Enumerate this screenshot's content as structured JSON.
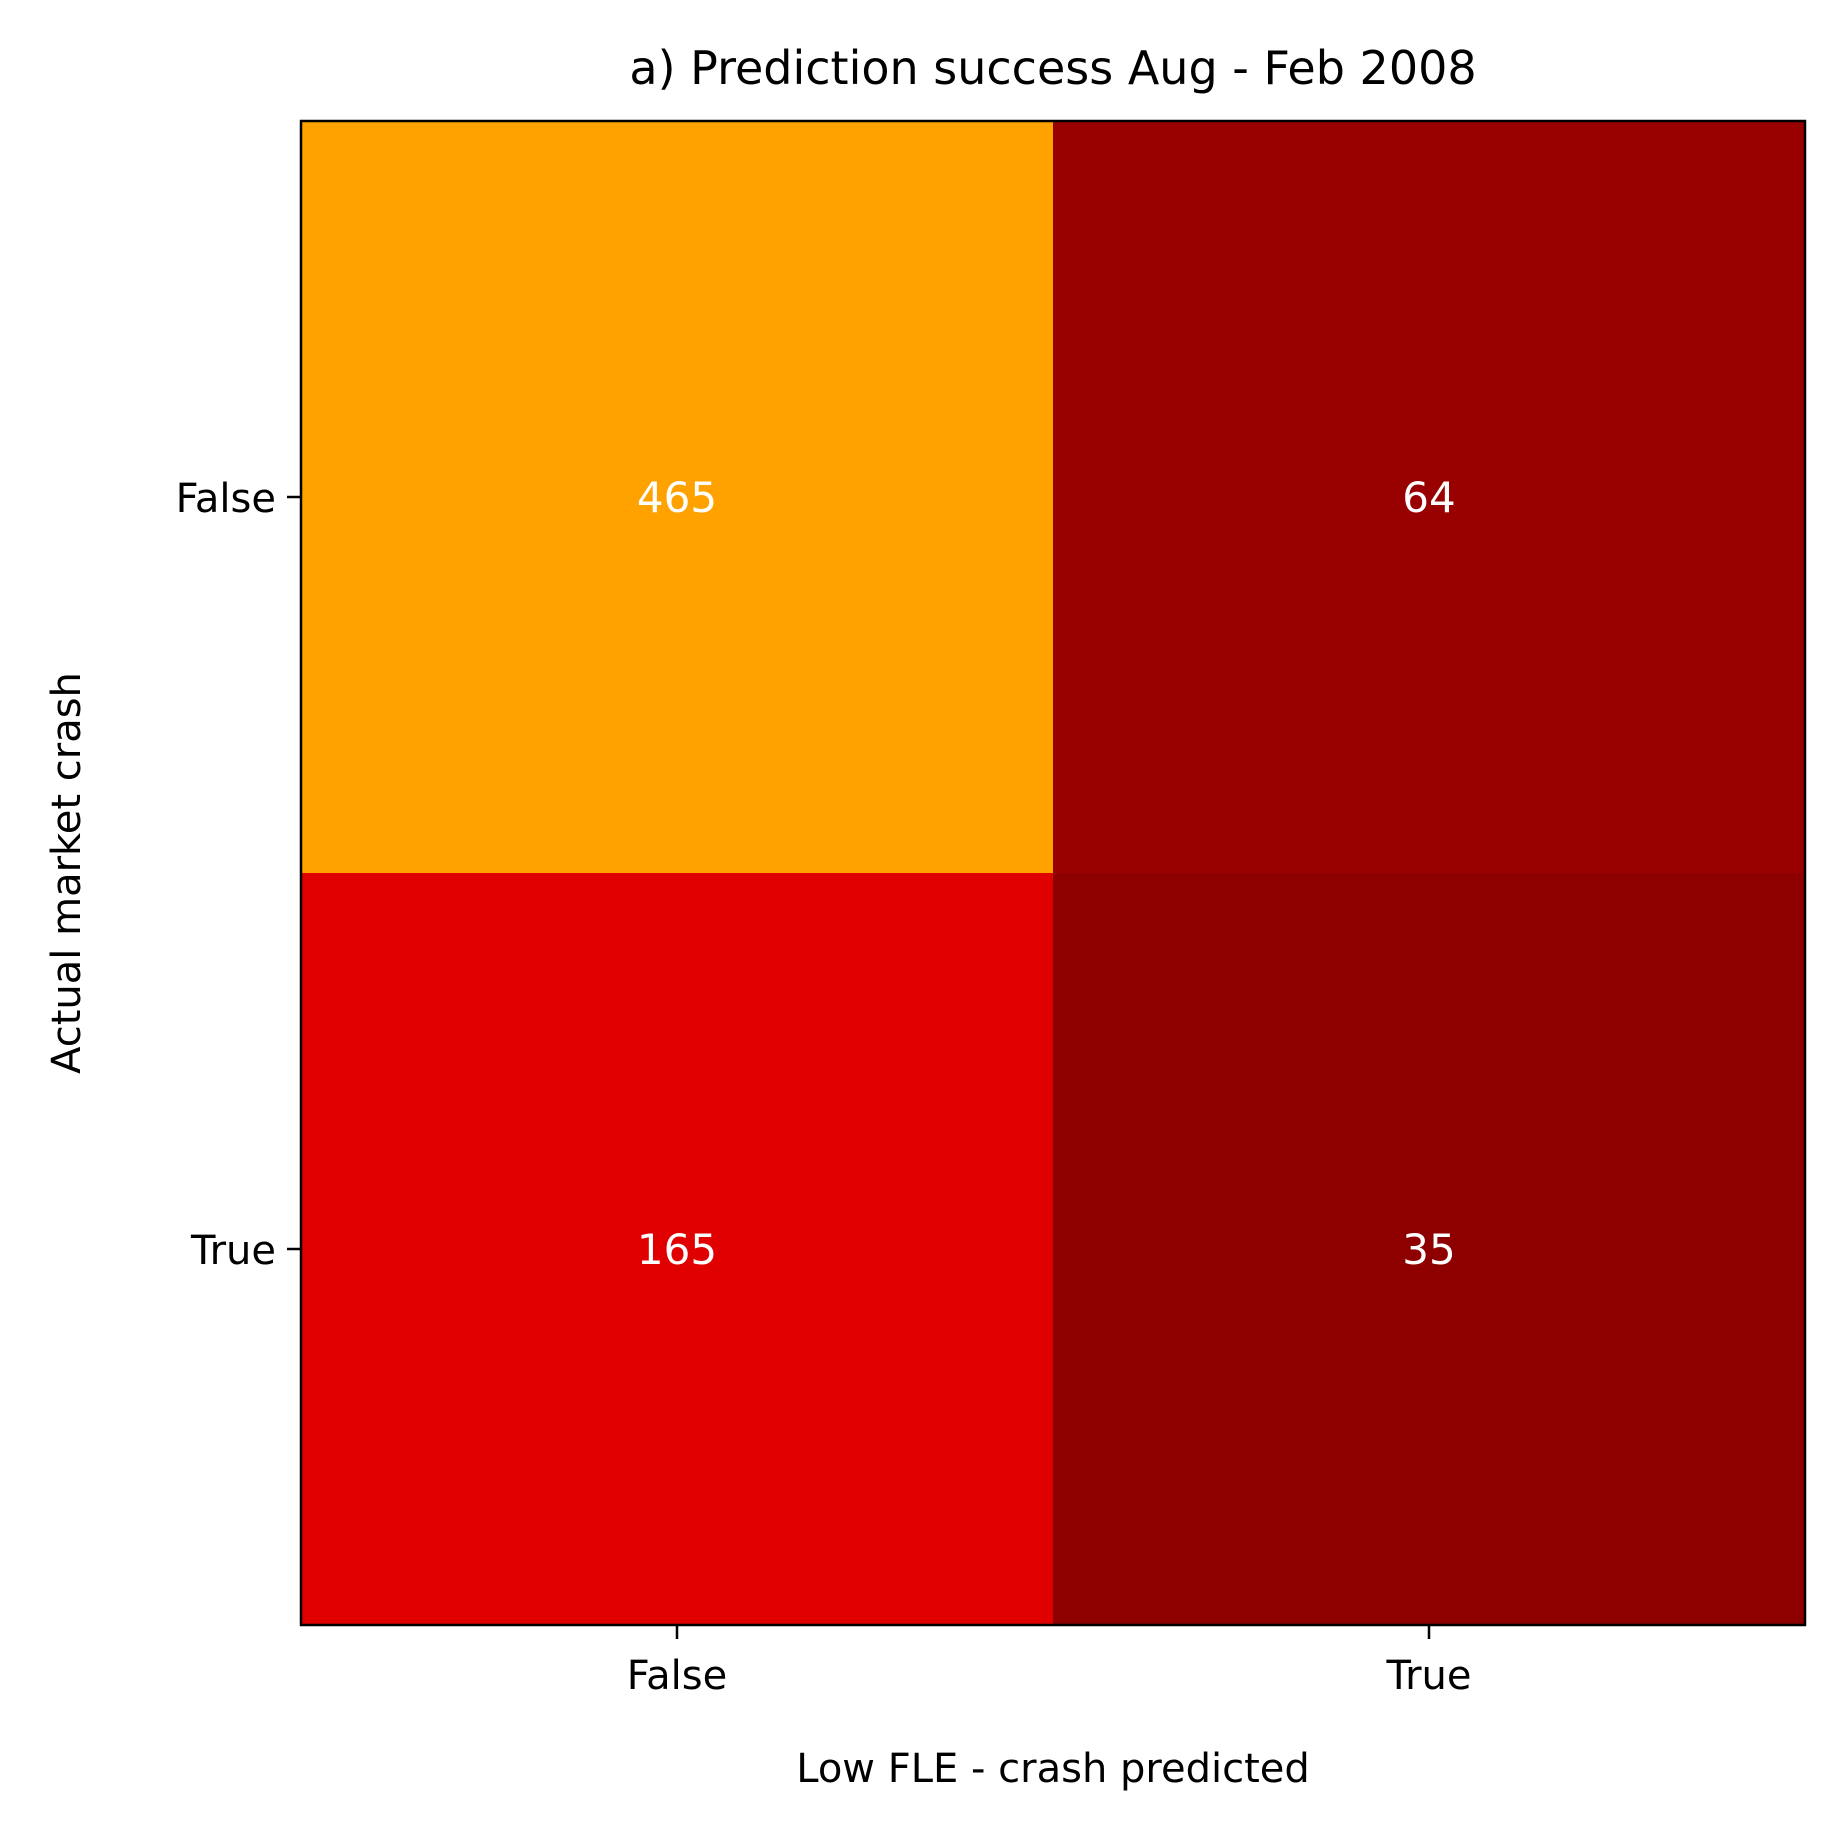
{
  "chart_data": {
    "type": "heatmap",
    "title": "a) Prediction success Aug - Feb 2008",
    "xlabel": "Low FLE - crash predicted",
    "ylabel": "Actual market crash",
    "x_categories": [
      "False",
      "True"
    ],
    "y_categories": [
      "False",
      "True"
    ],
    "values": [
      [
        465,
        64
      ],
      [
        165,
        35
      ]
    ],
    "cell_colors": [
      [
        "#ffa200",
        "#990000"
      ],
      [
        "#e10000",
        "#8e0000"
      ]
    ],
    "label_color": "#ffffff",
    "grid": false
  }
}
